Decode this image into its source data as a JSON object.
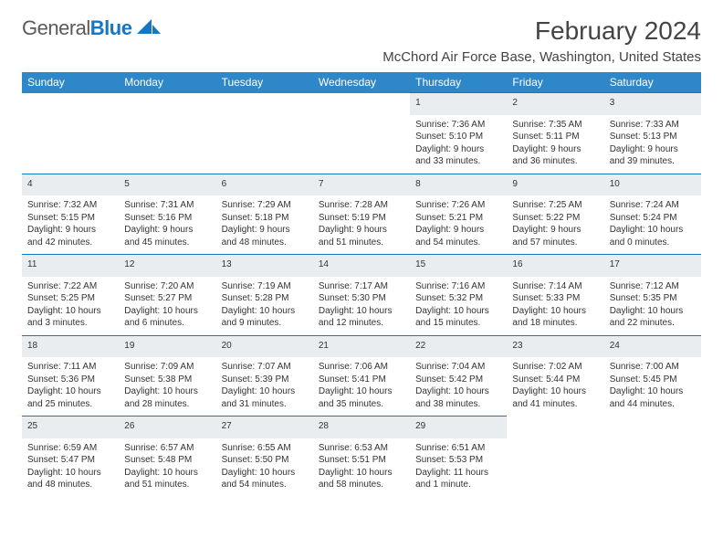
{
  "brand": {
    "name_part1": "General",
    "name_part2": "Blue",
    "accent_color": "#1676c1"
  },
  "header": {
    "month_title": "February 2024",
    "location": "McChord Air Force Base, Washington, United States"
  },
  "calendar": {
    "header_bg": "#2e87c8",
    "daynum_bg": "#e9edf0",
    "rule_color": "#1676c1",
    "day_headers": [
      "Sunday",
      "Monday",
      "Tuesday",
      "Wednesday",
      "Thursday",
      "Friday",
      "Saturday"
    ],
    "weeks": [
      [
        null,
        null,
        null,
        null,
        {
          "n": "1",
          "sunrise": "Sunrise: 7:36 AM",
          "sunset": "Sunset: 5:10 PM",
          "daylight": "Daylight: 9 hours and 33 minutes."
        },
        {
          "n": "2",
          "sunrise": "Sunrise: 7:35 AM",
          "sunset": "Sunset: 5:11 PM",
          "daylight": "Daylight: 9 hours and 36 minutes."
        },
        {
          "n": "3",
          "sunrise": "Sunrise: 7:33 AM",
          "sunset": "Sunset: 5:13 PM",
          "daylight": "Daylight: 9 hours and 39 minutes."
        }
      ],
      [
        {
          "n": "4",
          "sunrise": "Sunrise: 7:32 AM",
          "sunset": "Sunset: 5:15 PM",
          "daylight": "Daylight: 9 hours and 42 minutes."
        },
        {
          "n": "5",
          "sunrise": "Sunrise: 7:31 AM",
          "sunset": "Sunset: 5:16 PM",
          "daylight": "Daylight: 9 hours and 45 minutes."
        },
        {
          "n": "6",
          "sunrise": "Sunrise: 7:29 AM",
          "sunset": "Sunset: 5:18 PM",
          "daylight": "Daylight: 9 hours and 48 minutes."
        },
        {
          "n": "7",
          "sunrise": "Sunrise: 7:28 AM",
          "sunset": "Sunset: 5:19 PM",
          "daylight": "Daylight: 9 hours and 51 minutes."
        },
        {
          "n": "8",
          "sunrise": "Sunrise: 7:26 AM",
          "sunset": "Sunset: 5:21 PM",
          "daylight": "Daylight: 9 hours and 54 minutes."
        },
        {
          "n": "9",
          "sunrise": "Sunrise: 7:25 AM",
          "sunset": "Sunset: 5:22 PM",
          "daylight": "Daylight: 9 hours and 57 minutes."
        },
        {
          "n": "10",
          "sunrise": "Sunrise: 7:24 AM",
          "sunset": "Sunset: 5:24 PM",
          "daylight": "Daylight: 10 hours and 0 minutes."
        }
      ],
      [
        {
          "n": "11",
          "sunrise": "Sunrise: 7:22 AM",
          "sunset": "Sunset: 5:25 PM",
          "daylight": "Daylight: 10 hours and 3 minutes."
        },
        {
          "n": "12",
          "sunrise": "Sunrise: 7:20 AM",
          "sunset": "Sunset: 5:27 PM",
          "daylight": "Daylight: 10 hours and 6 minutes."
        },
        {
          "n": "13",
          "sunrise": "Sunrise: 7:19 AM",
          "sunset": "Sunset: 5:28 PM",
          "daylight": "Daylight: 10 hours and 9 minutes."
        },
        {
          "n": "14",
          "sunrise": "Sunrise: 7:17 AM",
          "sunset": "Sunset: 5:30 PM",
          "daylight": "Daylight: 10 hours and 12 minutes."
        },
        {
          "n": "15",
          "sunrise": "Sunrise: 7:16 AM",
          "sunset": "Sunset: 5:32 PM",
          "daylight": "Daylight: 10 hours and 15 minutes."
        },
        {
          "n": "16",
          "sunrise": "Sunrise: 7:14 AM",
          "sunset": "Sunset: 5:33 PM",
          "daylight": "Daylight: 10 hours and 18 minutes."
        },
        {
          "n": "17",
          "sunrise": "Sunrise: 7:12 AM",
          "sunset": "Sunset: 5:35 PM",
          "daylight": "Daylight: 10 hours and 22 minutes."
        }
      ],
      [
        {
          "n": "18",
          "sunrise": "Sunrise: 7:11 AM",
          "sunset": "Sunset: 5:36 PM",
          "daylight": "Daylight: 10 hours and 25 minutes."
        },
        {
          "n": "19",
          "sunrise": "Sunrise: 7:09 AM",
          "sunset": "Sunset: 5:38 PM",
          "daylight": "Daylight: 10 hours and 28 minutes."
        },
        {
          "n": "20",
          "sunrise": "Sunrise: 7:07 AM",
          "sunset": "Sunset: 5:39 PM",
          "daylight": "Daylight: 10 hours and 31 minutes."
        },
        {
          "n": "21",
          "sunrise": "Sunrise: 7:06 AM",
          "sunset": "Sunset: 5:41 PM",
          "daylight": "Daylight: 10 hours and 35 minutes."
        },
        {
          "n": "22",
          "sunrise": "Sunrise: 7:04 AM",
          "sunset": "Sunset: 5:42 PM",
          "daylight": "Daylight: 10 hours and 38 minutes."
        },
        {
          "n": "23",
          "sunrise": "Sunrise: 7:02 AM",
          "sunset": "Sunset: 5:44 PM",
          "daylight": "Daylight: 10 hours and 41 minutes."
        },
        {
          "n": "24",
          "sunrise": "Sunrise: 7:00 AM",
          "sunset": "Sunset: 5:45 PM",
          "daylight": "Daylight: 10 hours and 44 minutes."
        }
      ],
      [
        {
          "n": "25",
          "sunrise": "Sunrise: 6:59 AM",
          "sunset": "Sunset: 5:47 PM",
          "daylight": "Daylight: 10 hours and 48 minutes."
        },
        {
          "n": "26",
          "sunrise": "Sunrise: 6:57 AM",
          "sunset": "Sunset: 5:48 PM",
          "daylight": "Daylight: 10 hours and 51 minutes."
        },
        {
          "n": "27",
          "sunrise": "Sunrise: 6:55 AM",
          "sunset": "Sunset: 5:50 PM",
          "daylight": "Daylight: 10 hours and 54 minutes."
        },
        {
          "n": "28",
          "sunrise": "Sunrise: 6:53 AM",
          "sunset": "Sunset: 5:51 PM",
          "daylight": "Daylight: 10 hours and 58 minutes."
        },
        {
          "n": "29",
          "sunrise": "Sunrise: 6:51 AM",
          "sunset": "Sunset: 5:53 PM",
          "daylight": "Daylight: 11 hours and 1 minute."
        },
        null,
        null
      ]
    ]
  }
}
